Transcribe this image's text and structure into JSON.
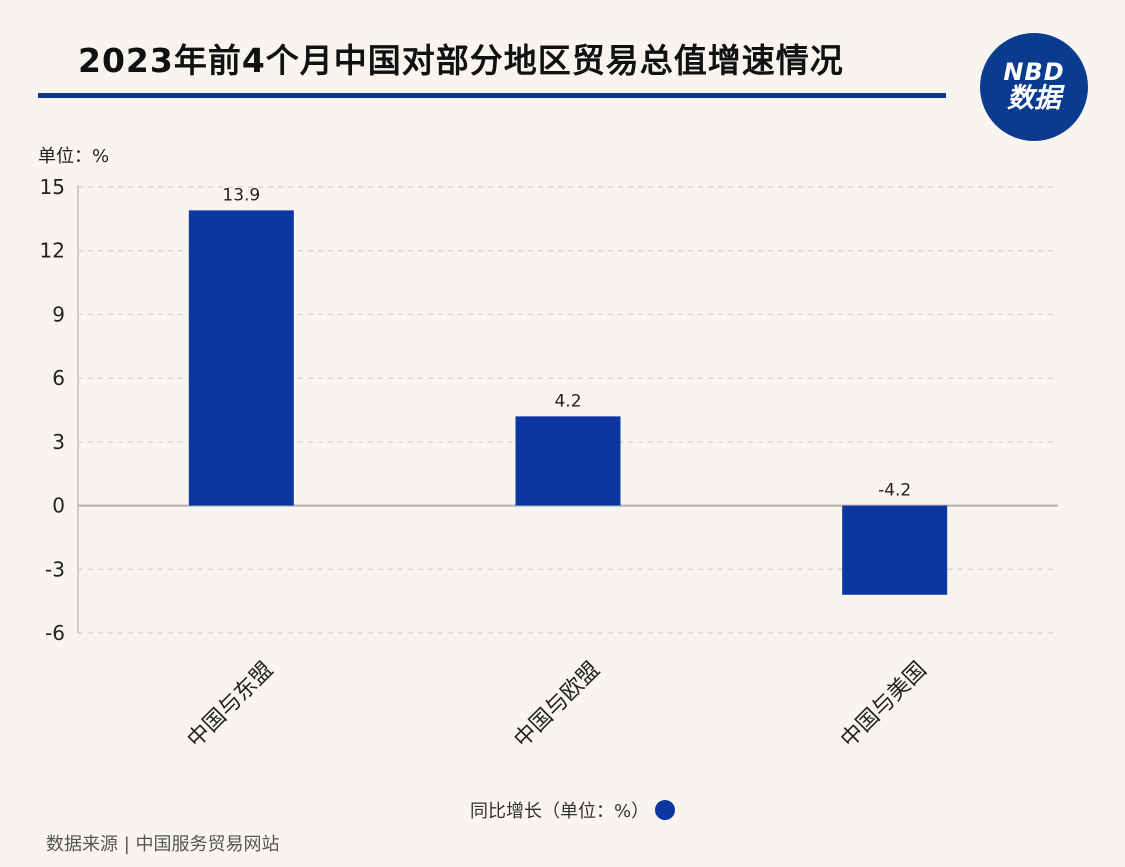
{
  "header": {
    "title": "2023年前4个月中国对部分地区贸易总值增速情况",
    "logo_line1": "NBD",
    "logo_line2": "数据"
  },
  "footer": {
    "source": "数据来源 | 中国服务贸易网站"
  },
  "colors": {
    "bar": "#0d36a0",
    "title_rule": "#0d3a8c",
    "logo_bg": "#0b3b8f",
    "background": "#f8f5f1"
  },
  "chart_data": {
    "type": "bar",
    "unit_label": "单位：%",
    "categories": [
      "中国与东盟",
      "中国与欧盟",
      "中国与美国"
    ],
    "series": [
      {
        "name": "同比增长（单位：%）",
        "values": [
          13.9,
          4.2,
          -4.2
        ],
        "labels": [
          "13.9",
          "4.2",
          "-4.2"
        ]
      }
    ],
    "ylim": [
      -6,
      15
    ],
    "yticks": [
      15,
      12,
      9,
      6,
      3,
      0,
      -3,
      -6
    ],
    "grid": true,
    "legend_position": "bottom-center"
  }
}
